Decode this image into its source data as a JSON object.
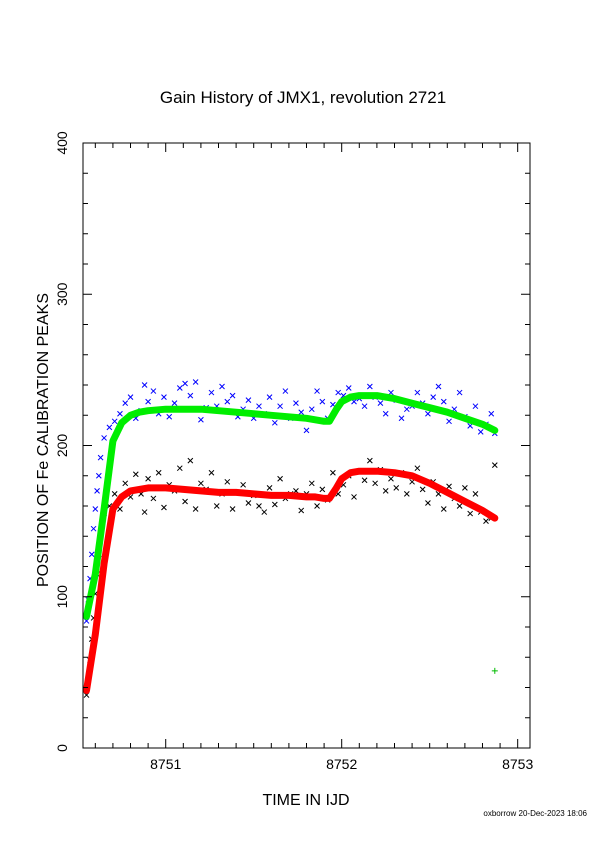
{
  "chart_data": {
    "type": "scatter",
    "title": "Gain History of JMX1, revolution 2721",
    "xlabel": "TIME IN IJD",
    "ylabel": "POSITION OF Fe CALIBRATION PEAKS",
    "xlim": [
      8750.53,
      8753.07
    ],
    "ylim": [
      0,
      400
    ],
    "x_ticks": [
      8751,
      8752,
      8753
    ],
    "y_ticks": [
      0,
      100,
      200,
      300,
      400
    ],
    "x_tick_labels": [
      "8751",
      "8752",
      "8753"
    ],
    "y_tick_labels": [
      "0",
      "100",
      "200",
      "300",
      "400"
    ],
    "grid": false,
    "footer": "oxborrow 20-Dec-2023 18:06",
    "colors": {
      "upper_points": "#0000ff",
      "lower_points": "#000000",
      "upper_fit": "#00ee00",
      "lower_fit": "#ff0000"
    },
    "series": [
      {
        "role": "upper-points",
        "marker": "x",
        "color": "#0000ff",
        "x": [
          8750.55,
          8750.56,
          8750.57,
          8750.58,
          8750.59,
          8750.6,
          8750.61,
          8750.62,
          8750.63,
          8750.65,
          8750.68,
          8750.71,
          8750.74,
          8750.77,
          8750.8,
          8750.83,
          8750.86,
          8750.88,
          8750.9,
          8750.93,
          8750.96,
          8750.99,
          8751.02,
          8751.05,
          8751.08,
          8751.11,
          8751.14,
          8751.17,
          8751.2,
          8751.23,
          8751.26,
          8751.29,
          8751.32,
          8751.35,
          8751.38,
          8751.41,
          8751.44,
          8751.47,
          8751.5,
          8751.53,
          8751.56,
          8751.59,
          8751.62,
          8751.65,
          8751.68,
          8751.71,
          8751.74,
          8751.77,
          8751.8,
          8751.83,
          8751.86,
          8751.89,
          8751.92,
          8751.95,
          8751.98,
          8752.01,
          8752.04,
          8752.07,
          8752.1,
          8752.13,
          8752.16,
          8752.19,
          8752.22,
          8752.25,
          8752.28,
          8752.31,
          8752.34,
          8752.37,
          8752.4,
          8752.43,
          8752.46,
          8752.49,
          8752.52,
          8752.55,
          8752.58,
          8752.61,
          8752.64,
          8752.67,
          8752.7,
          8752.73,
          8752.76,
          8752.79,
          8752.82,
          8752.85,
          8752.87
        ],
        "y": [
          84,
          98,
          112,
          128,
          145,
          158,
          170,
          180,
          192,
          205,
          212,
          216,
          221,
          228,
          232,
          218,
          223,
          240,
          229,
          236,
          221,
          232,
          219,
          228,
          238,
          241,
          233,
          242,
          217,
          225,
          235,
          226,
          239,
          229,
          233,
          219,
          224,
          230,
          218,
          226,
          221,
          232,
          215,
          226,
          236,
          218,
          228,
          222,
          210,
          224,
          236,
          229,
          218,
          227,
          235,
          233,
          238,
          229,
          231,
          226,
          239,
          232,
          228,
          221,
          235,
          230,
          218,
          224,
          226,
          235,
          228,
          221,
          232,
          239,
          229,
          216,
          224,
          235,
          219,
          213,
          226,
          209,
          214,
          221,
          208
        ]
      },
      {
        "role": "lower-points",
        "marker": "x",
        "color": "#000000",
        "x": [
          8750.55,
          8750.56,
          8750.57,
          8750.58,
          8750.59,
          8750.6,
          8750.61,
          8750.62,
          8750.63,
          8750.65,
          8750.68,
          8750.71,
          8750.74,
          8750.77,
          8750.8,
          8750.83,
          8750.86,
          8750.88,
          8750.9,
          8750.93,
          8750.96,
          8750.99,
          8751.02,
          8751.05,
          8751.08,
          8751.11,
          8751.14,
          8751.17,
          8751.2,
          8751.23,
          8751.26,
          8751.29,
          8751.32,
          8751.35,
          8751.38,
          8751.41,
          8751.44,
          8751.47,
          8751.5,
          8751.53,
          8751.56,
          8751.59,
          8751.62,
          8751.65,
          8751.68,
          8751.71,
          8751.74,
          8751.77,
          8751.8,
          8751.83,
          8751.86,
          8751.89,
          8751.92,
          8751.95,
          8751.98,
          8752.01,
          8752.04,
          8752.07,
          8752.1,
          8752.13,
          8752.16,
          8752.19,
          8752.22,
          8752.25,
          8752.28,
          8752.31,
          8752.34,
          8752.37,
          8752.4,
          8752.43,
          8752.46,
          8752.49,
          8752.52,
          8752.55,
          8752.58,
          8752.61,
          8752.64,
          8752.67,
          8752.7,
          8752.73,
          8752.76,
          8752.79,
          8752.82,
          8752.85,
          8752.87
        ],
        "y": [
          35,
          45,
          58,
          72,
          86,
          102,
          115,
          128,
          142,
          155,
          160,
          168,
          158,
          175,
          166,
          181,
          168,
          156,
          178,
          165,
          182,
          159,
          174,
          170,
          185,
          163,
          190,
          158,
          175,
          171,
          182,
          160,
          168,
          176,
          158,
          169,
          174,
          162,
          167,
          160,
          156,
          172,
          161,
          178,
          165,
          168,
          170,
          157,
          168,
          175,
          160,
          171,
          164,
          182,
          168,
          174,
          180,
          166,
          183,
          177,
          190,
          175,
          184,
          170,
          178,
          172,
          182,
          168,
          176,
          185,
          171,
          162,
          176,
          168,
          158,
          173,
          165,
          160,
          172,
          155,
          168,
          156,
          150,
          152,
          187
        ]
      },
      {
        "role": "upper-fit",
        "marker": "line",
        "color": "#00ee00",
        "x": [
          8750.55,
          8750.6,
          8750.65,
          8750.7,
          8750.75,
          8750.8,
          8750.85,
          8750.9,
          8751.0,
          8751.1,
          8751.2,
          8751.3,
          8751.4,
          8751.5,
          8751.6,
          8751.7,
          8751.8,
          8751.85,
          8751.9,
          8751.93,
          8751.97,
          8752.0,
          8752.05,
          8752.1,
          8752.15,
          8752.2,
          8752.3,
          8752.4,
          8752.5,
          8752.6,
          8752.7,
          8752.8,
          8752.87
        ],
        "y": [
          87,
          115,
          158,
          203,
          215,
          220,
          222,
          223,
          224,
          224,
          224,
          223,
          222,
          221,
          220,
          219,
          218,
          217,
          216,
          216,
          224,
          229,
          232,
          233,
          233,
          233,
          231,
          228,
          225,
          222,
          218,
          214,
          210
        ]
      },
      {
        "role": "lower-fit",
        "marker": "line",
        "color": "#ff0000",
        "x": [
          8750.55,
          8750.6,
          8750.65,
          8750.7,
          8750.75,
          8750.8,
          8750.85,
          8750.9,
          8751.0,
          8751.1,
          8751.2,
          8751.3,
          8751.4,
          8751.5,
          8751.6,
          8751.7,
          8751.8,
          8751.85,
          8751.9,
          8751.93,
          8751.97,
          8752.0,
          8752.05,
          8752.1,
          8752.15,
          8752.2,
          8752.3,
          8752.4,
          8752.5,
          8752.6,
          8752.7,
          8752.8,
          8752.87
        ],
        "y": [
          38,
          75,
          122,
          158,
          166,
          170,
          171,
          172,
          172,
          171,
          170,
          169,
          169,
          168,
          167,
          167,
          166,
          166,
          165,
          165,
          172,
          178,
          182,
          183,
          183,
          183,
          182,
          180,
          175,
          169,
          163,
          157,
          152
        ]
      },
      {
        "role": "outliers",
        "marker": "+",
        "color": "#00bb00",
        "x": [
          8752.87
        ],
        "y": [
          51
        ]
      }
    ]
  }
}
